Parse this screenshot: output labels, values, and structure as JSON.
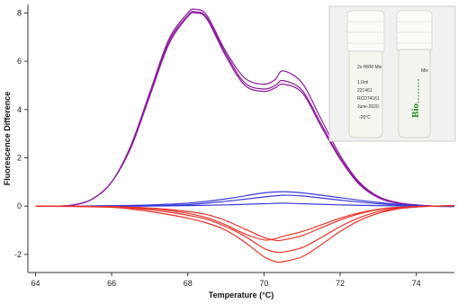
{
  "chart_data": {
    "type": "line",
    "xlabel": "Temperature (°C)",
    "ylabel": "Fluorescence Difference",
    "xlim": [
      63.8,
      75.0
    ],
    "ylim": [
      -2.75,
      8.35
    ],
    "xticks": [
      64,
      66,
      68,
      70,
      72,
      74
    ],
    "yticks": [
      -2,
      0,
      2,
      4,
      6,
      8
    ],
    "grid": false,
    "legend": "none",
    "series_groups": [
      {
        "color": "#8b1a9c",
        "curves": [
          {
            "x": [
              64.0,
              64.5,
              65.0,
              65.5,
              66.0,
              66.5,
              67.0,
              67.5,
              68.0,
              68.2,
              68.5,
              69.0,
              69.5,
              70.0,
              70.3,
              70.5,
              71.0,
              71.5,
              72.0,
              72.5,
              73.0,
              73.5,
              74.0,
              74.5,
              75.0
            ],
            "y": [
              0.0,
              0.0,
              0.05,
              0.3,
              1.0,
              2.5,
              4.7,
              6.9,
              8.0,
              8.15,
              7.9,
              6.4,
              5.3,
              5.05,
              5.25,
              5.6,
              5.1,
              3.6,
              2.1,
              1.0,
              0.4,
              0.15,
              0.05,
              0.0,
              0.0
            ]
          },
          {
            "x": [
              64.0,
              64.5,
              65.0,
              65.5,
              66.0,
              66.5,
              67.0,
              67.5,
              68.0,
              68.2,
              68.5,
              69.0,
              69.5,
              70.0,
              70.3,
              70.5,
              71.0,
              71.5,
              72.0,
              72.5,
              73.0,
              73.5,
              74.0,
              74.5,
              75.0
            ],
            "y": [
              0.0,
              0.0,
              0.05,
              0.3,
              1.0,
              2.45,
              4.6,
              6.8,
              7.9,
              8.05,
              7.8,
              6.3,
              5.1,
              4.85,
              5.0,
              5.2,
              4.8,
              3.4,
              2.0,
              0.95,
              0.38,
              0.14,
              0.05,
              0.0,
              0.0
            ]
          },
          {
            "x": [
              64.0,
              64.5,
              65.0,
              65.5,
              66.0,
              66.5,
              67.0,
              67.5,
              68.0,
              68.2,
              68.5,
              69.0,
              69.5,
              70.0,
              70.3,
              70.5,
              71.0,
              71.5,
              72.0,
              72.5,
              73.0,
              73.5,
              74.0,
              74.5,
              75.0
            ],
            "y": [
              0.0,
              0.0,
              0.05,
              0.3,
              1.0,
              2.4,
              4.55,
              6.7,
              7.85,
              8.0,
              7.75,
              6.2,
              5.0,
              4.75,
              4.9,
              5.05,
              4.7,
              3.3,
              1.95,
              0.9,
              0.35,
              0.12,
              0.04,
              0.0,
              0.0
            ]
          }
        ]
      },
      {
        "color": "#3a3adb",
        "curves": [
          {
            "x": [
              64.0,
              65.0,
              66.0,
              67.0,
              68.0,
              69.0,
              70.0,
              70.5,
              71.0,
              72.0,
              73.0,
              74.0,
              75.0
            ],
            "y": [
              0.0,
              0.0,
              0.02,
              0.05,
              0.12,
              0.3,
              0.55,
              0.6,
              0.55,
              0.35,
              0.15,
              0.02,
              -0.02
            ]
          },
          {
            "x": [
              64.0,
              65.0,
              66.0,
              67.0,
              68.0,
              69.0,
              70.0,
              70.5,
              71.0,
              72.0,
              73.0,
              74.0,
              75.0
            ],
            "y": [
              0.0,
              0.0,
              0.0,
              0.02,
              0.06,
              0.2,
              0.38,
              0.45,
              0.42,
              0.25,
              0.1,
              0.01,
              -0.02
            ]
          },
          {
            "x": [
              64.0,
              65.0,
              66.0,
              67.0,
              68.0,
              69.0,
              70.0,
              70.5,
              71.0,
              72.0,
              73.0,
              74.0,
              75.0
            ],
            "y": [
              0.0,
              0.0,
              0.0,
              0.0,
              0.02,
              0.05,
              0.1,
              0.12,
              0.1,
              0.05,
              0.02,
              0.0,
              0.0
            ]
          }
        ]
      },
      {
        "color": "#e8332b",
        "curves": [
          {
            "x": [
              64.0,
              65.0,
              66.0,
              66.5,
              67.0,
              67.5,
              68.0,
              68.5,
              69.0,
              69.5,
              70.0,
              70.3,
              70.5,
              71.0,
              71.5,
              72.0,
              72.5,
              73.0,
              73.5,
              74.0,
              74.5,
              75.0
            ],
            "y": [
              0.0,
              -0.02,
              -0.05,
              -0.12,
              -0.22,
              -0.35,
              -0.5,
              -0.7,
              -1.0,
              -1.5,
              -2.1,
              -2.3,
              -2.3,
              -2.1,
              -1.6,
              -1.05,
              -0.6,
              -0.3,
              -0.12,
              -0.04,
              0.0,
              0.02
            ]
          },
          {
            "x": [
              64.0,
              65.0,
              66.0,
              66.5,
              67.0,
              67.5,
              68.0,
              68.5,
              69.0,
              69.5,
              70.0,
              70.3,
              70.5,
              71.0,
              71.5,
              72.0,
              72.5,
              73.0,
              73.5,
              74.0,
              74.5,
              75.0
            ],
            "y": [
              0.0,
              -0.01,
              -0.03,
              -0.08,
              -0.15,
              -0.25,
              -0.38,
              -0.55,
              -0.85,
              -1.25,
              -1.75,
              -1.9,
              -1.9,
              -1.72,
              -1.3,
              -0.85,
              -0.48,
              -0.23,
              -0.09,
              -0.03,
              0.0,
              0.02
            ]
          },
          {
            "x": [
              64.0,
              65.0,
              66.0,
              66.5,
              67.0,
              67.5,
              68.0,
              68.5,
              69.0,
              69.5,
              70.0,
              70.3,
              70.5,
              71.0,
              71.5,
              72.0,
              72.5,
              73.0,
              73.5,
              74.0,
              74.5,
              75.0
            ],
            "y": [
              0.0,
              -0.01,
              -0.02,
              -0.05,
              -0.1,
              -0.18,
              -0.3,
              -0.48,
              -0.78,
              -1.15,
              -1.4,
              -1.35,
              -1.25,
              -1.05,
              -0.78,
              -0.5,
              -0.28,
              -0.13,
              -0.05,
              -0.02,
              0.0,
              0.02
            ]
          },
          {
            "x": [
              64.0,
              65.0,
              66.0,
              66.5,
              67.0,
              67.5,
              68.0,
              68.5,
              69.0,
              69.5,
              70.0,
              70.3,
              70.5,
              71.0,
              71.5,
              72.0,
              72.5,
              73.0,
              73.5,
              74.0,
              74.5,
              75.0
            ],
            "y": [
              0.0,
              -0.01,
              -0.02,
              -0.04,
              -0.08,
              -0.14,
              -0.22,
              -0.35,
              -0.6,
              -0.95,
              -1.3,
              -1.42,
              -1.4,
              -1.22,
              -0.9,
              -0.58,
              -0.32,
              -0.15,
              -0.06,
              -0.02,
              0.0,
              0.02
            ]
          }
        ]
      }
    ]
  },
  "inset": {
    "tube_left": {
      "lines": [
        "2x HRM Mix",
        "1.0ml",
        "221461",
        "RCD74161",
        "June-2020",
        "-25°C"
      ]
    },
    "tube_right": {
      "label": "Mix",
      "brand": "Bio"
    }
  }
}
